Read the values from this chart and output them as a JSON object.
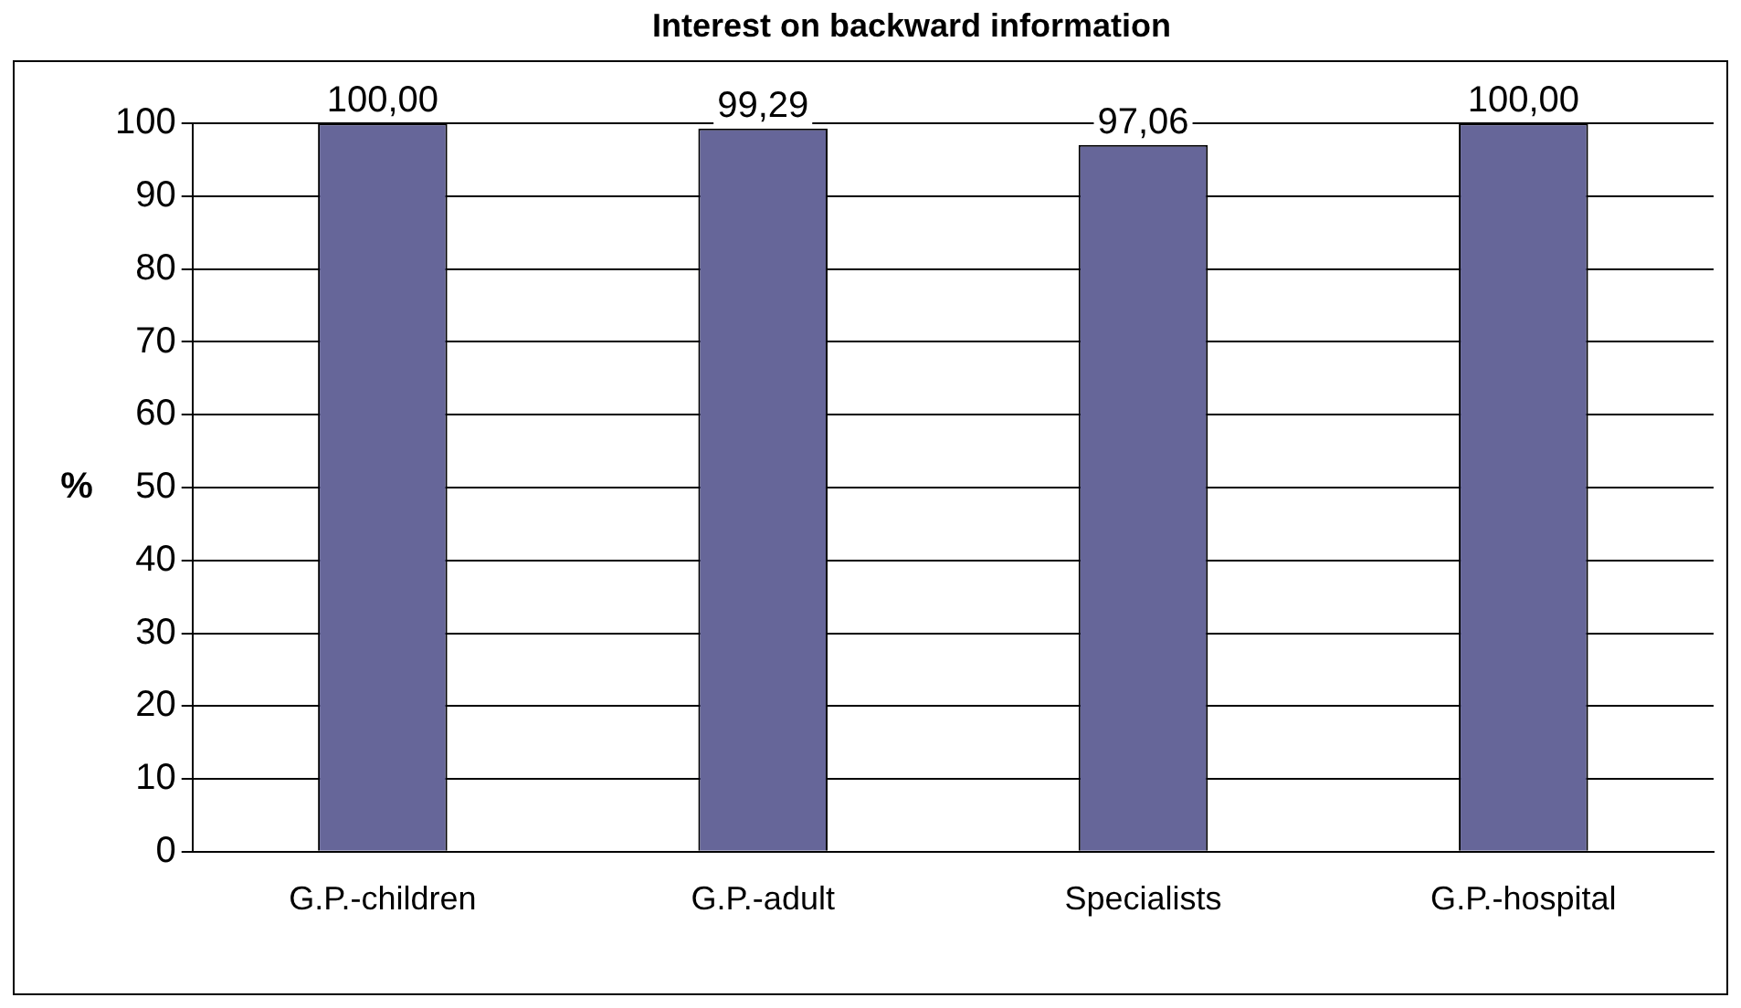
{
  "chart_data": {
    "type": "bar",
    "title": "Interest on backward information",
    "ylabel": "%",
    "categories": [
      "G.P.-children",
      "G.P.-adult",
      "Specialists",
      "G.P.-hospital"
    ],
    "values": [
      100,
      99.29,
      97.06,
      100
    ],
    "value_labels": [
      "100,00",
      "99,29",
      "97,06",
      "100,00"
    ],
    "color": "#666699",
    "ylim": [
      0,
      100
    ],
    "yticks": [
      0,
      10,
      20,
      30,
      40,
      50,
      60,
      70,
      80,
      90,
      100
    ],
    "grid": "y",
    "legend": false
  }
}
